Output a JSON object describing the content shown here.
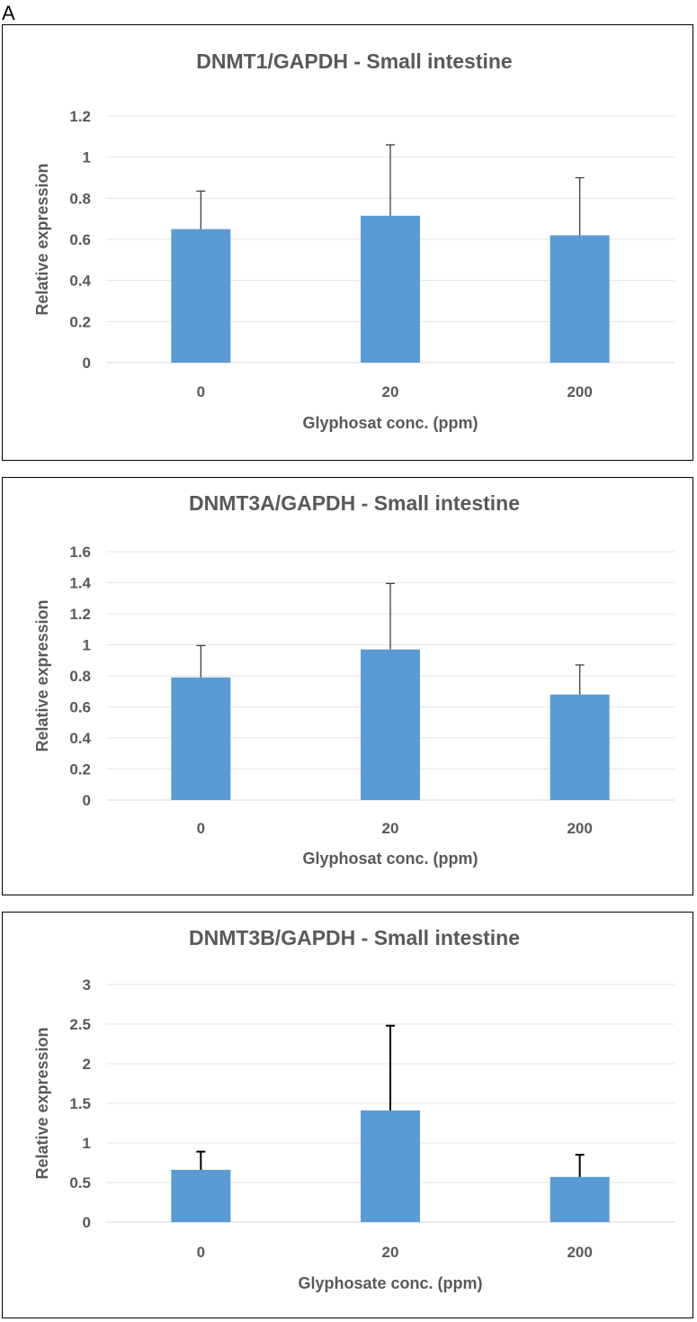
{
  "panel_label": "A",
  "chart_data": [
    {
      "type": "bar",
      "title": "DNMT1/GAPDH - Small intestine",
      "xlabel": "Glyphosat conc. (ppm)",
      "ylabel": "Relative expression",
      "categories": [
        "0",
        "20",
        "200"
      ],
      "values": [
        0.65,
        0.715,
        0.62
      ],
      "error_upper": [
        0.185,
        0.345,
        0.28
      ],
      "ylim": [
        0,
        1.2
      ],
      "yticks": [
        "0",
        "0.2",
        "0.4",
        "0.6",
        "0.8",
        "1",
        "1.2"
      ],
      "grid": true,
      "bar_color": "#5b9bd5"
    },
    {
      "type": "bar",
      "title": "DNMT3A/GAPDH - Small intestine",
      "xlabel": "Glyphosat conc. (ppm)",
      "ylabel": "Relative expression",
      "categories": [
        "0",
        "20",
        "200"
      ],
      "values": [
        0.79,
        0.97,
        0.68
      ],
      "error_upper": [
        0.205,
        0.425,
        0.19
      ],
      "ylim": [
        0,
        1.6
      ],
      "yticks": [
        "0",
        "0.2",
        "0.4",
        "0.6",
        "0.8",
        "1",
        "1.2",
        "1.4",
        "1.6"
      ],
      "grid": true,
      "bar_color": "#5b9bd5"
    },
    {
      "type": "bar",
      "title": "DNMT3B/GAPDH - Small intestine",
      "xlabel": "Glyphosate conc. (ppm)",
      "ylabel": "Relative expression",
      "categories": [
        "0",
        "20",
        "200"
      ],
      "values": [
        0.66,
        1.41,
        0.57
      ],
      "error_upper": [
        0.23,
        1.07,
        0.28
      ],
      "ylim": [
        0,
        3
      ],
      "yticks": [
        "0",
        "0.5",
        "1",
        "1.5",
        "2",
        "2.5",
        "3"
      ],
      "grid": true,
      "bar_color": "#5b9bd5"
    }
  ]
}
